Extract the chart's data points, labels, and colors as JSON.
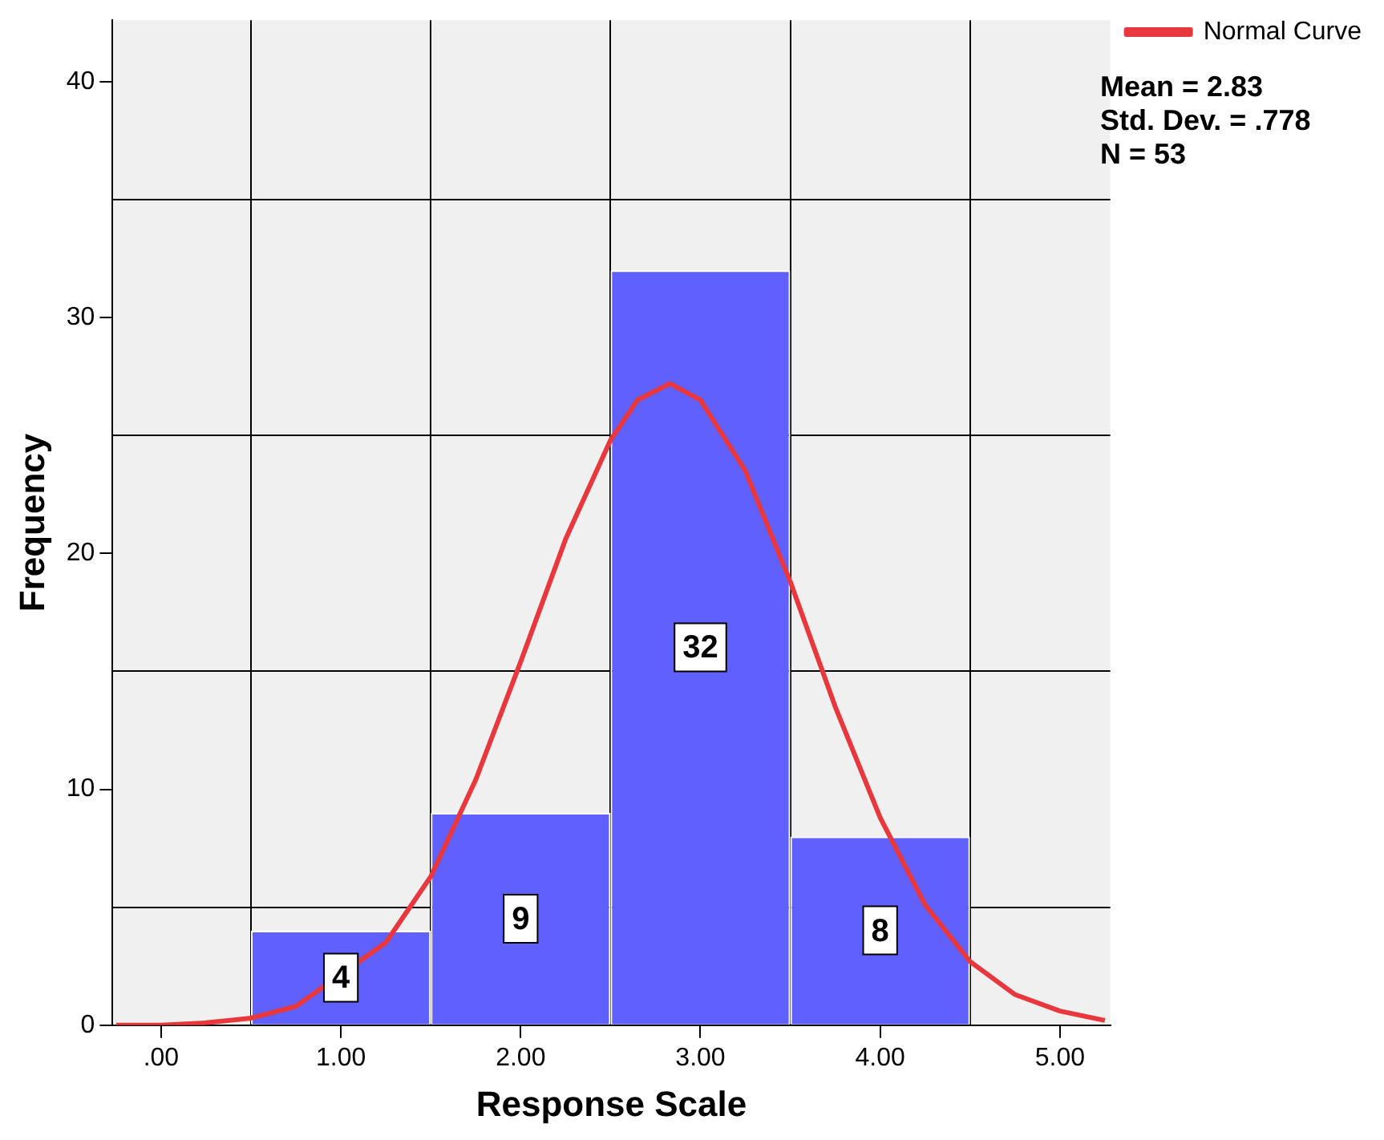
{
  "chart_data": {
    "type": "histogram",
    "xlabel": "Response Scale",
    "ylabel": "Frequency",
    "bins": [
      0.5,
      1.5,
      2.5,
      3.5,
      4.5
    ],
    "values": [
      4,
      9,
      32,
      8
    ],
    "color": "#6060ff",
    "value_labels": [
      "4",
      "9",
      "32",
      "8"
    ],
    "series": [
      {
        "type": "line",
        "name": "Normal Curve",
        "color": "#e8383d",
        "x": [
          -0.25,
          0,
          0.25,
          0.5,
          0.75,
          1.25,
          1.5,
          1.75,
          2,
          2.25,
          2.5,
          2.65,
          2.83,
          3,
          3.25,
          3.5,
          3.75,
          4,
          4.25,
          4.5,
          4.75,
          5,
          5.25
        ],
        "values": [
          0,
          0,
          0.1,
          0.3,
          0.8,
          3.5,
          6.3,
          10.4,
          15.4,
          20.6,
          24.8,
          26.5,
          27.2,
          26.5,
          23.5,
          18.8,
          13.5,
          8.8,
          5.1,
          2.7,
          1.3,
          0.6,
          0.2
        ]
      }
    ],
    "xlim": [
      -0.27,
      5.28
    ],
    "ylim": [
      0,
      42.6
    ],
    "xticks": [
      {
        "value": 0,
        "label": ".00"
      },
      {
        "value": 0.5,
        "label": null
      },
      {
        "value": 1,
        "label": "1.00"
      },
      {
        "value": 1.5,
        "label": null
      },
      {
        "value": 2,
        "label": "2.00"
      },
      {
        "value": 2.5,
        "label": null
      },
      {
        "value": 3,
        "label": "3.00"
      },
      {
        "value": 3.5,
        "label": null
      },
      {
        "value": 4,
        "label": "4.00"
      },
      {
        "value": 4.5,
        "label": null
      },
      {
        "value": 5,
        "label": "5.00"
      }
    ],
    "yticks": [
      0,
      {
        "value": 5,
        "label": null
      },
      10,
      {
        "value": 15,
        "label": null
      },
      20,
      {
        "value": 25,
        "label": null
      },
      30,
      {
        "value": 35,
        "label": null
      },
      40
    ],
    "grid": true,
    "legend": "right",
    "annotations": [
      "Mean = 2.83",
      "Std. Dev. = .778",
      "N = 53"
    ]
  }
}
